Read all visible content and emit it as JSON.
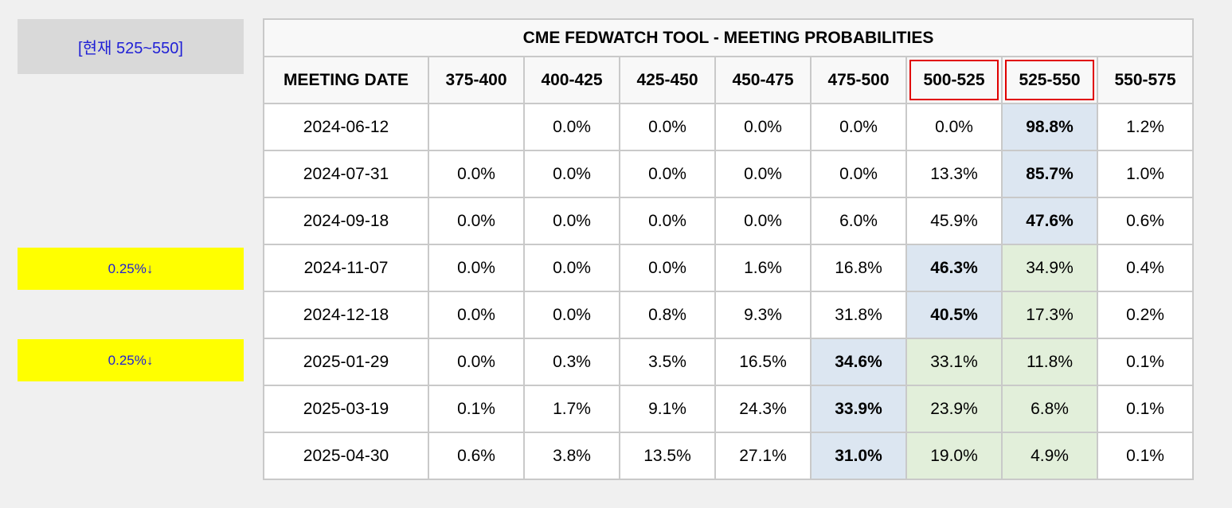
{
  "side": {
    "current_label": "[현재 525~550]",
    "cut_labels": [
      "0.25%↓",
      "0.25%↓"
    ]
  },
  "table": {
    "title": "CME FEDWATCH TOOL - MEETING PROBABILITIES",
    "date_header": "MEETING DATE",
    "highlighted_columns": [
      "500-525",
      "525-550"
    ],
    "colors": {
      "highlight_blue": "#dce6f1",
      "highlight_green": "#e2efda",
      "cut_box": "#ffff00",
      "header_outline": "#e00000",
      "divider_line": "#e06666"
    }
  },
  "chart_data": {
    "type": "table",
    "title": "CME FEDWATCH TOOL - MEETING PROBABILITIES",
    "columns": [
      "375-400",
      "400-425",
      "425-450",
      "450-475",
      "475-500",
      "500-525",
      "525-550",
      "550-575"
    ],
    "rows": [
      {
        "date": "2024-06-12",
        "values": [
          "",
          "0.0%",
          "0.0%",
          "0.0%",
          "0.0%",
          "0.0%",
          "98.8%",
          "1.2%"
        ],
        "blue": [
          6
        ],
        "green": []
      },
      {
        "date": "2024-07-31",
        "values": [
          "0.0%",
          "0.0%",
          "0.0%",
          "0.0%",
          "0.0%",
          "13.3%",
          "85.7%",
          "1.0%"
        ],
        "blue": [
          6
        ],
        "green": []
      },
      {
        "date": "2024-09-18",
        "values": [
          "0.0%",
          "0.0%",
          "0.0%",
          "0.0%",
          "6.0%",
          "45.9%",
          "47.6%",
          "0.6%"
        ],
        "blue": [
          6
        ],
        "green": []
      },
      {
        "date": "2024-11-07",
        "values": [
          "0.0%",
          "0.0%",
          "0.0%",
          "1.6%",
          "16.8%",
          "46.3%",
          "34.9%",
          "0.4%"
        ],
        "blue": [
          5
        ],
        "green": [
          6
        ]
      },
      {
        "date": "2024-12-18",
        "values": [
          "0.0%",
          "0.0%",
          "0.8%",
          "9.3%",
          "31.8%",
          "40.5%",
          "17.3%",
          "0.2%"
        ],
        "blue": [
          5
        ],
        "green": [
          6
        ]
      },
      {
        "date": "2025-01-29",
        "values": [
          "0.0%",
          "0.3%",
          "3.5%",
          "16.5%",
          "34.6%",
          "33.1%",
          "11.8%",
          "0.1%"
        ],
        "blue": [
          4
        ],
        "green": [
          5,
          6
        ]
      },
      {
        "date": "2025-03-19",
        "values": [
          "0.1%",
          "1.7%",
          "9.1%",
          "24.3%",
          "33.9%",
          "23.9%",
          "6.8%",
          "0.1%"
        ],
        "blue": [
          4
        ],
        "green": [
          5,
          6
        ]
      },
      {
        "date": "2025-04-30",
        "values": [
          "0.6%",
          "3.8%",
          "13.5%",
          "27.1%",
          "31.0%",
          "19.0%",
          "4.9%",
          "0.1%"
        ],
        "blue": [
          4
        ],
        "green": [
          5,
          6
        ]
      }
    ]
  }
}
